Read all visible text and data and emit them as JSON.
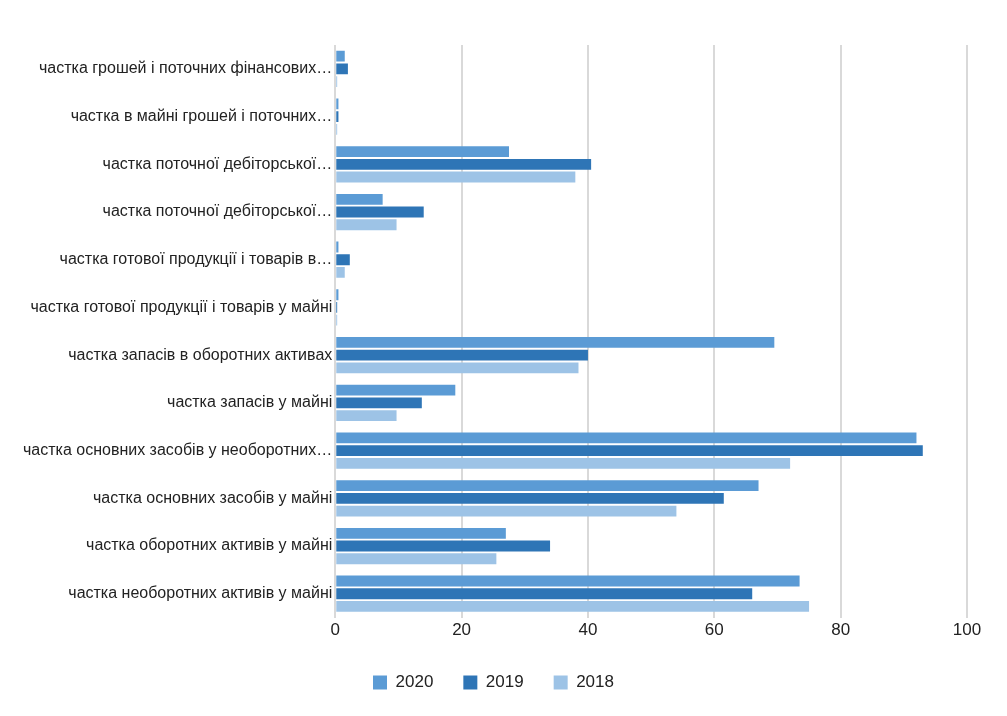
{
  "chart_data": {
    "type": "bar",
    "orientation": "horizontal",
    "categories": [
      "частка грошей і поточних фінансових…",
      "частка в майні грошей і поточних…",
      "частка поточної дебіторської…",
      "частка поточної дебіторської…",
      "частка готової продукції і товарів в…",
      "частка готової продукції і товарів у майні",
      "частка запасів в оборотних активах",
      "частка запасів у майні",
      "частка основних засобів у необоротних…",
      "частка основних засобів у майні",
      "частка оборотних активів у майні",
      "частка необоротних активів у майні"
    ],
    "series": [
      {
        "name": "2020",
        "color": "#5b9bd5",
        "values": [
          1.5,
          0.5,
          27.5,
          7.5,
          0.5,
          0.5,
          69.5,
          19,
          92,
          67,
          27,
          73.5
        ]
      },
      {
        "name": "2019",
        "color": "#2e75b6",
        "values": [
          2,
          0.5,
          40.5,
          14,
          2.3,
          0.3,
          40,
          13.7,
          93,
          61.5,
          34,
          66
        ]
      },
      {
        "name": "2018",
        "color": "#9dc3e6",
        "values": [
          0.3,
          0.3,
          38,
          9.7,
          1.5,
          0.3,
          38.5,
          9.7,
          72,
          54,
          25.5,
          75
        ]
      }
    ],
    "xlim": [
      0,
      100
    ],
    "xticks": [
      0,
      20,
      40,
      60,
      80,
      100
    ],
    "grid": "x",
    "legend": "bottom"
  }
}
